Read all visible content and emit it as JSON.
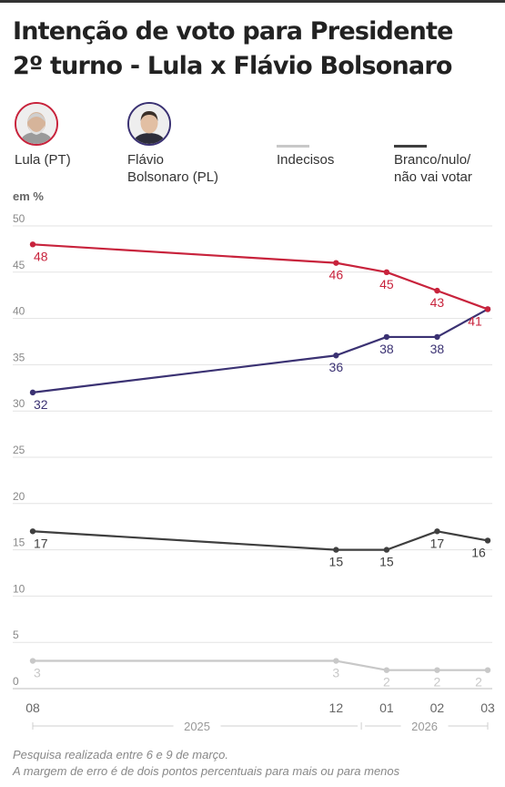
{
  "title_line1": "Intenção de voto para Presidente",
  "title_line2": "2º turno - Lula x Flávio Bolsonaro",
  "legend": {
    "lula": {
      "label": "Lula (PT)",
      "color": "#c8233c"
    },
    "flavio": {
      "line1": "Flávio",
      "line2": "Bolsonaro (PL)",
      "color": "#3b3273"
    },
    "indecisos": {
      "label": "Indecisos",
      "color": "#c8c8c8"
    },
    "branco": {
      "line1": "Branco/nulo/",
      "line2": "não vai votar",
      "color": "#3f3f3f"
    }
  },
  "unit_label": "em %",
  "chart_data": {
    "type": "line",
    "x_positions": [
      0,
      12,
      14,
      16,
      18
    ],
    "x_tick_labels": [
      "08",
      "12",
      "01",
      "02",
      "03"
    ],
    "year_labels": [
      {
        "label": "2025",
        "start": 0,
        "end": 13
      },
      {
        "label": "2026",
        "start": 13,
        "end": 18
      }
    ],
    "ylim": [
      0,
      50
    ],
    "yticks": [
      0,
      5,
      10,
      15,
      20,
      25,
      30,
      35,
      40,
      45,
      50
    ],
    "grid": true,
    "series": [
      {
        "name": "Lula (PT)",
        "color": "#c8233c",
        "values": [
          48,
          46,
          45,
          43,
          41
        ],
        "label_pos": "below",
        "last_label_shift": -14
      },
      {
        "name": "Flávio Bolsonaro (PL)",
        "color": "#3b3273",
        "values": [
          32,
          36,
          38,
          38,
          41
        ],
        "label_pos": "below",
        "hide_last_label": true
      },
      {
        "name": "Branco/nulo/não vai votar",
        "color": "#3f3f3f",
        "values": [
          17,
          15,
          15,
          17,
          16
        ],
        "label_pos": "below"
      },
      {
        "name": "Indecisos",
        "color": "#c8c8c8",
        "values": [
          3,
          3,
          2,
          2,
          2
        ],
        "label_pos": "below"
      }
    ]
  },
  "footnotes": {
    "line1": "Pesquisa realizada entre 6 e 9 de março.",
    "line2": "A margem de erro é de dois pontos percentuais para mais ou para menos"
  }
}
